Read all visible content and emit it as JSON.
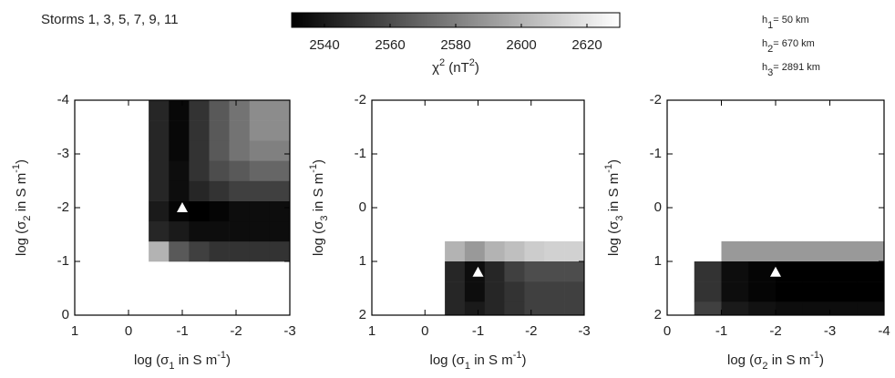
{
  "title": "Storms 1, 3, 5, 7, 9, 11",
  "colorbar": {
    "zlim": [
      2530,
      2630
    ],
    "zticks": [
      2540,
      2560,
      2580,
      2600,
      2620
    ],
    "colormap": [
      "#000000",
      "#ffffff"
    ],
    "label": [
      {
        "text": "χ"
      },
      {
        "sup": "2"
      },
      {
        "text": " (nT"
      },
      {
        "sup": "2"
      },
      {
        "text": ")"
      }
    ]
  },
  "annotations": [
    [
      {
        "text": "h"
      },
      {
        "sub": "1"
      },
      {
        "text": "= 50 km"
      }
    ],
    [
      {
        "text": "h"
      },
      {
        "sub": "2"
      },
      {
        "text": "= 670 km"
      }
    ],
    [
      {
        "text": "h"
      },
      {
        "sub": "3"
      },
      {
        "text": "= 2891 km"
      }
    ]
  ],
  "chart_data": [
    {
      "type": "heatmap",
      "xlabel": [
        {
          "text": "log (σ"
        },
        {
          "sub": "1"
        },
        {
          "text": " in S m"
        },
        {
          "sup": "-1"
        },
        {
          "text": ")"
        }
      ],
      "ylabel": [
        {
          "text": "log (σ"
        },
        {
          "sub": "2"
        },
        {
          "text": " in S m"
        },
        {
          "sup": "-1"
        },
        {
          "text": ")"
        }
      ],
      "xlim": [
        1,
        -3
      ],
      "xticks": [
        1,
        0,
        -1,
        -2,
        -3
      ],
      "ylim": [
        0,
        -4
      ],
      "yticks": [
        0,
        -1,
        -2,
        -3,
        -4
      ],
      "x_edges": [
        -0.375,
        -0.75,
        -1.125,
        -1.5,
        -1.875,
        -2.25,
        -2.625,
        -3
      ],
      "y_edges": [
        -1,
        -1.375,
        -1.75,
        -2.125,
        -2.5,
        -2.875,
        -3.25,
        -3.625,
        -4
      ],
      "z": [
        [
          2600,
          2565,
          2555,
          2550,
          2550,
          2550,
          2550
        ],
        [
          2545,
          2540,
          2535,
          2535,
          2535,
          2535,
          2535
        ],
        [
          2540,
          2532,
          2530,
          2532,
          2535,
          2535,
          2535
        ],
        [
          2545,
          2535,
          2545,
          2550,
          2555,
          2555,
          2555
        ],
        [
          2545,
          2535,
          2550,
          2560,
          2565,
          2570,
          2570
        ],
        [
          2545,
          2533,
          2550,
          2565,
          2575,
          2580,
          2580
        ],
        [
          2545,
          2533,
          2550,
          2565,
          2575,
          2585,
          2585
        ],
        [
          2545,
          2533,
          2550,
          2565,
          2575,
          2585,
          2585
        ]
      ],
      "marker": [
        -1,
        -2
      ]
    },
    {
      "type": "heatmap",
      "xlabel": [
        {
          "text": "log (σ"
        },
        {
          "sub": "1"
        },
        {
          "text": " in S m"
        },
        {
          "sup": "-1"
        },
        {
          "text": ")"
        }
      ],
      "ylabel": [
        {
          "text": "log (σ"
        },
        {
          "sub": "3"
        },
        {
          "text": " in S m"
        },
        {
          "sup": "-1"
        },
        {
          "text": ")"
        }
      ],
      "xlim": [
        1,
        -3
      ],
      "xticks": [
        1,
        0,
        -1,
        -2,
        -3
      ],
      "ylim": [
        2,
        -2
      ],
      "yticks": [
        2,
        1,
        0,
        -1,
        -2
      ],
      "x_edges": [
        -0.375,
        -0.75,
        -1.125,
        -1.5,
        -1.875,
        -2.25,
        -2.625,
        -3
      ],
      "y_edges": [
        0.625,
        1,
        1.375,
        1.75,
        2
      ],
      "z": [
        [
          2600,
          2590,
          2600,
          2605,
          2610,
          2612,
          2612
        ],
        [
          2545,
          2535,
          2545,
          2555,
          2560,
          2560,
          2560
        ],
        [
          2545,
          2535,
          2545,
          2550,
          2555,
          2555,
          2555
        ],
        [
          2545,
          2540,
          2545,
          2550,
          2555,
          2555,
          2555
        ]
      ],
      "marker": [
        -1,
        1.2
      ]
    },
    {
      "type": "heatmap",
      "xlabel": [
        {
          "text": "log (σ"
        },
        {
          "sub": "2"
        },
        {
          "text": " in S m"
        },
        {
          "sup": "-1"
        },
        {
          "text": ")"
        }
      ],
      "ylabel": [
        {
          "text": "log (σ"
        },
        {
          "sub": "3"
        },
        {
          "text": " in S m"
        },
        {
          "sup": "-1"
        },
        {
          "text": ")"
        }
      ],
      "xlim": [
        0,
        -4
      ],
      "xticks": [
        0,
        -1,
        -2,
        -3,
        -4
      ],
      "ylim": [
        2,
        -2
      ],
      "yticks": [
        2,
        1,
        0,
        -1,
        -2
      ],
      "x_edges": [
        -0.5,
        -1,
        -1.5,
        -2,
        -2.5,
        -3,
        -3.5,
        -4
      ],
      "y_edges": [
        0.625,
        1,
        1.375,
        1.75,
        2
      ],
      "z": [
        [
          null,
          2590,
          2590,
          2590,
          2590,
          2590,
          2590
        ],
        [
          2550,
          2535,
          2532,
          2530,
          2530,
          2530,
          2530
        ],
        [
          2550,
          2535,
          2532,
          2530,
          2530,
          2530,
          2530
        ],
        [
          2555,
          2540,
          2537,
          2535,
          2535,
          2535,
          2535
        ]
      ],
      "marker": [
        -2,
        1.2
      ]
    }
  ]
}
